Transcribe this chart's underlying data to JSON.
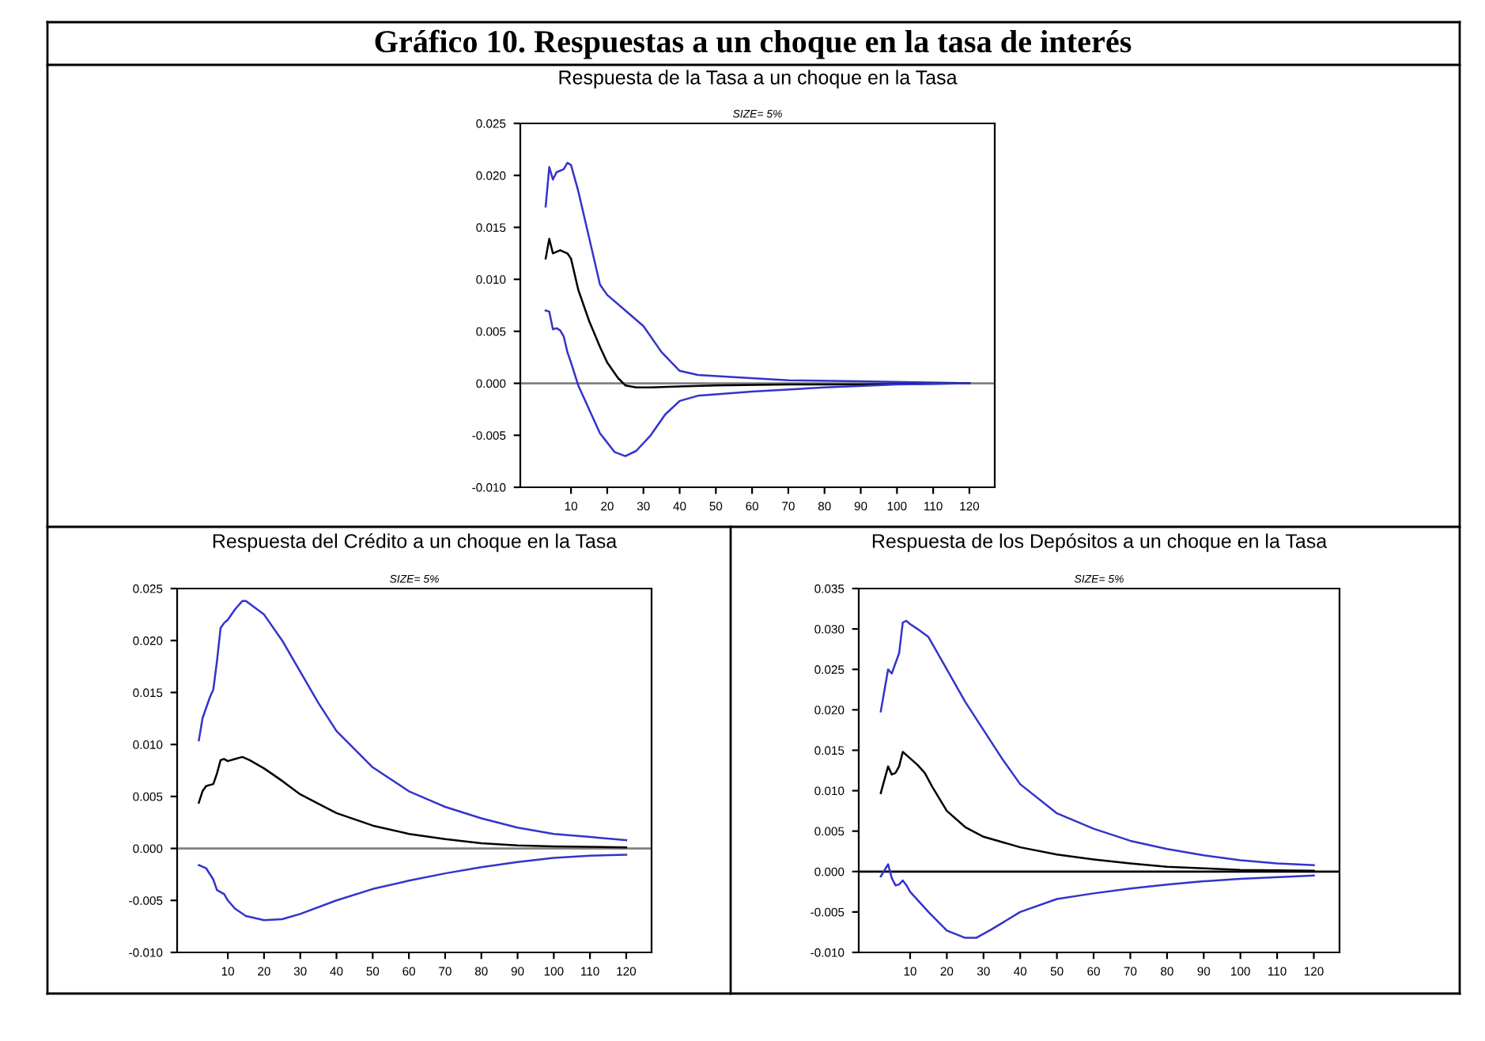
{
  "chart_data": [
    {
      "type": "line",
      "title": "Respuesta de la Tasa a un choque en la Tasa",
      "annotations": [
        "Gráfico 10. Respuestas a un choque en la tasa de interés",
        "SIZE= 5%"
      ],
      "xlim": [
        -4,
        127
      ],
      "xticks": [
        10,
        20,
        30,
        40,
        50,
        60,
        70,
        80,
        90,
        100,
        110,
        120
      ],
      "ylim": [
        -0.01,
        0.025
      ],
      "yticks": [
        {
          "value": -0.01,
          "label": "-0.010"
        },
        {
          "value": -0.005,
          "label": "-0.005"
        },
        {
          "value": 0,
          "label": "0.000"
        },
        {
          "value": 0.005,
          "label": "0.005"
        },
        {
          "value": 0.01,
          "label": "0.010"
        },
        {
          "value": 0.015,
          "label": "0.015"
        },
        {
          "value": 0.02,
          "label": "0.020"
        },
        {
          "value": 0.025,
          "label": "0.025"
        }
      ],
      "grid": false,
      "legend": false,
      "ref_lines": [
        {
          "axis": "y",
          "value": 0,
          "label": null,
          "color": "#808080"
        }
      ],
      "series": [
        {
          "color": "#3333cc",
          "x": [
            3,
            4,
            5,
            6,
            8,
            9,
            10,
            12,
            15,
            18,
            20,
            25,
            30,
            35,
            40,
            45,
            55,
            70,
            90,
            120
          ],
          "values": [
            0.017,
            0.0208,
            0.0196,
            0.0203,
            0.0206,
            0.0212,
            0.021,
            0.0185,
            0.014,
            0.0095,
            0.0085,
            0.007,
            0.0055,
            0.003,
            0.0012,
            0.0008,
            0.0006,
            0.0003,
            0.0002,
            0.0
          ]
        },
        {
          "color": "#000000",
          "x": [
            3,
            4,
            5,
            7,
            9,
            10,
            12,
            15,
            18,
            20,
            23,
            25,
            28,
            32,
            40,
            50,
            70,
            90,
            120
          ],
          "values": [
            0.012,
            0.0139,
            0.0125,
            0.0128,
            0.0125,
            0.012,
            0.009,
            0.006,
            0.0035,
            0.002,
            0.0005,
            -0.0002,
            -0.0004,
            -0.0004,
            -0.0003,
            -0.0002,
            -0.0001,
            -0.0001,
            0.0
          ]
        },
        {
          "color": "#3333cc",
          "x": [
            3,
            4,
            5,
            6,
            7,
            8,
            9,
            10,
            12,
            15,
            18,
            22,
            25,
            28,
            32,
            36,
            40,
            45,
            60,
            80,
            100,
            120
          ],
          "values": [
            0.007,
            0.0069,
            0.0052,
            0.0053,
            0.0051,
            0.0045,
            0.003,
            0.002,
            -0.0002,
            -0.0025,
            -0.0048,
            -0.0066,
            -0.007,
            -0.0065,
            -0.005,
            -0.003,
            -0.0017,
            -0.0012,
            -0.0008,
            -0.0004,
            -0.0001,
            0.0
          ]
        }
      ]
    },
    {
      "type": "line",
      "title": "Respuesta del Crédito a un choque en la Tasa",
      "annotations": [
        "SIZE= 5%"
      ],
      "xlim": [
        -4,
        127
      ],
      "xticks": [
        10,
        20,
        30,
        40,
        50,
        60,
        70,
        80,
        90,
        100,
        110,
        120
      ],
      "ylim": [
        -0.01,
        0.025
      ],
      "yticks": [
        {
          "value": -0.01,
          "label": "-0.010"
        },
        {
          "value": -0.005,
          "label": "-0.005"
        },
        {
          "value": 0,
          "label": "0.000"
        },
        {
          "value": 0.005,
          "label": "0.005"
        },
        {
          "value": 0.01,
          "label": "0.010"
        },
        {
          "value": 0.015,
          "label": "0.015"
        },
        {
          "value": 0.02,
          "label": "0.020"
        },
        {
          "value": 0.025,
          "label": "0.025"
        }
      ],
      "grid": false,
      "legend": false,
      "ref_lines": [
        {
          "axis": "y",
          "value": 0,
          "label": null,
          "color": "#808080"
        }
      ],
      "series": [
        {
          "color": "#3333cc",
          "x": [
            2,
            3,
            5,
            6,
            7,
            8,
            9,
            10,
            12,
            14,
            15,
            20,
            25,
            30,
            35,
            40,
            50,
            60,
            70,
            80,
            90,
            100,
            110,
            120
          ],
          "values": [
            0.0104,
            0.0125,
            0.0145,
            0.0153,
            0.018,
            0.0212,
            0.0217,
            0.022,
            0.023,
            0.0238,
            0.0238,
            0.0225,
            0.02,
            0.017,
            0.014,
            0.0113,
            0.0078,
            0.0055,
            0.004,
            0.0029,
            0.002,
            0.0014,
            0.0011,
            0.0008
          ]
        },
        {
          "color": "#000000",
          "x": [
            2,
            3,
            4,
            5,
            6,
            7,
            8,
            9,
            10,
            12,
            14,
            16,
            20,
            25,
            30,
            40,
            50,
            60,
            70,
            80,
            90,
            100,
            120
          ],
          "values": [
            0.0044,
            0.0055,
            0.006,
            0.0061,
            0.0062,
            0.0072,
            0.0085,
            0.0086,
            0.0084,
            0.0086,
            0.0088,
            0.0085,
            0.0077,
            0.0065,
            0.0052,
            0.0034,
            0.0022,
            0.0014,
            0.0009,
            0.0005,
            0.0003,
            0.0002,
            0.0001
          ]
        },
        {
          "color": "#3333cc",
          "x": [
            2,
            4,
            6,
            7,
            9,
            10,
            12,
            15,
            20,
            25,
            30,
            40,
            50,
            60,
            70,
            80,
            90,
            100,
            110,
            120
          ],
          "values": [
            -0.0016,
            -0.0019,
            -0.003,
            -0.004,
            -0.0044,
            -0.005,
            -0.0058,
            -0.0065,
            -0.0069,
            -0.0068,
            -0.0063,
            -0.005,
            -0.0039,
            -0.0031,
            -0.0024,
            -0.0018,
            -0.0013,
            -0.0009,
            -0.0007,
            -0.0006
          ]
        }
      ]
    },
    {
      "type": "line",
      "title": "Respuesta de los Depósitos a un choque en la Tasa",
      "annotations": [
        "SIZE= 5%"
      ],
      "xlim": [
        -4,
        127
      ],
      "xticks": [
        10,
        20,
        30,
        40,
        50,
        60,
        70,
        80,
        90,
        100,
        110,
        120
      ],
      "ylim": [
        -0.01,
        0.035
      ],
      "yticks": [
        {
          "value": -0.01,
          "label": "-0.010"
        },
        {
          "value": -0.005,
          "label": "-0.005"
        },
        {
          "value": 0,
          "label": "0.000"
        },
        {
          "value": 0.005,
          "label": "0.005"
        },
        {
          "value": 0.01,
          "label": "0.010"
        },
        {
          "value": 0.015,
          "label": "0.015"
        },
        {
          "value": 0.02,
          "label": "0.020"
        },
        {
          "value": 0.025,
          "label": "0.025"
        },
        {
          "value": 0.03,
          "label": "0.030"
        },
        {
          "value": 0.035,
          "label": "0.035"
        }
      ],
      "grid": false,
      "legend": false,
      "ref_lines": [
        {
          "axis": "y",
          "value": 0,
          "label": null,
          "color": "#000000"
        }
      ],
      "series": [
        {
          "color": "#3333cc",
          "x": [
            2,
            4,
            5,
            7,
            8,
            9,
            10,
            12,
            15,
            20,
            25,
            30,
            35,
            40,
            50,
            60,
            70,
            80,
            90,
            100,
            110,
            120
          ],
          "values": [
            0.0198,
            0.025,
            0.0245,
            0.027,
            0.0308,
            0.031,
            0.0306,
            0.03,
            0.029,
            0.025,
            0.021,
            0.0175,
            0.014,
            0.0108,
            0.0072,
            0.0053,
            0.0038,
            0.0028,
            0.002,
            0.0014,
            0.001,
            0.0008
          ]
        },
        {
          "color": "#000000",
          "x": [
            2,
            4,
            5,
            6,
            7,
            8,
            10,
            12,
            14,
            16,
            20,
            25,
            30,
            40,
            50,
            60,
            70,
            80,
            90,
            100,
            120
          ],
          "values": [
            0.0097,
            0.013,
            0.012,
            0.0122,
            0.013,
            0.0148,
            0.014,
            0.0132,
            0.0122,
            0.0105,
            0.0075,
            0.0055,
            0.0043,
            0.003,
            0.0021,
            0.0015,
            0.001,
            0.0006,
            0.0004,
            0.0002,
            0.0001
          ]
        },
        {
          "color": "#3333cc",
          "x": [
            2,
            4,
            5,
            6,
            7,
            8,
            9,
            10,
            15,
            20,
            25,
            28,
            32,
            40,
            50,
            60,
            70,
            80,
            90,
            100,
            120
          ],
          "values": [
            -0.0006,
            0.0009,
            -0.0008,
            -0.0017,
            -0.0016,
            -0.0011,
            -0.0017,
            -0.0025,
            -0.005,
            -0.0073,
            -0.0082,
            -0.0082,
            -0.0072,
            -0.005,
            -0.0034,
            -0.0027,
            -0.0021,
            -0.0016,
            -0.0012,
            -0.0009,
            -0.0005
          ]
        }
      ]
    }
  ]
}
